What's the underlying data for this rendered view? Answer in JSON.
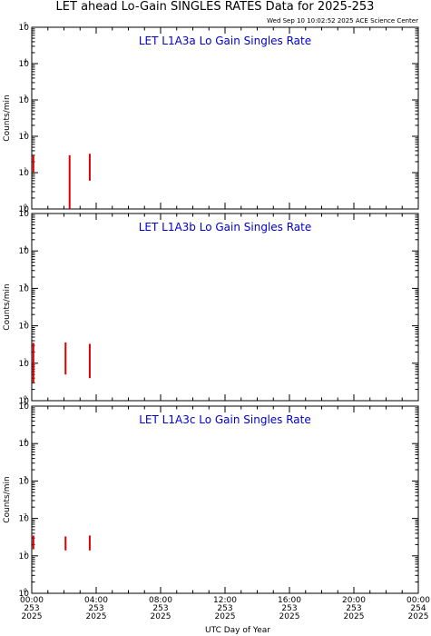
{
  "title": "LET ahead Lo-Gain SINGLES RATES Data for 2025-253",
  "timestamp": "Wed Sep 10 10:02:52 2025 ACE Science Center",
  "colors": {
    "data": "#dd0000",
    "panel_title": "#0000cc",
    "axes": "#000000"
  },
  "chart_data": [
    {
      "type": "line",
      "title": "LET L1A3a Lo Gain Singles Rate",
      "ylabel": "Counts/min",
      "yscale": "log",
      "ylim": [
        1,
        100000
      ],
      "xlim": [
        0,
        24
      ],
      "yticks": [
        "10",
        "10",
        "10",
        "10",
        "10",
        "10"
      ],
      "ytick_exponents": [
        "0",
        "1",
        "2",
        "3",
        "4",
        "5"
      ],
      "bursts": [
        {
          "x": 0.1,
          "ymin": 10,
          "ymax": 30
        },
        {
          "x": 2.35,
          "ymin": 1,
          "ymax": 30
        },
        {
          "x": 3.6,
          "ymin": 6,
          "ymax": 33
        }
      ]
    },
    {
      "type": "line",
      "title": "LET L1A3b Lo Gain Singles Rate",
      "ylabel": "Counts/min",
      "yscale": "log",
      "ylim": [
        1,
        100000
      ],
      "xlim": [
        0,
        24
      ],
      "yticks": [
        "10",
        "10",
        "10",
        "10",
        "10",
        "10"
      ],
      "ytick_exponents": [
        "0",
        "1",
        "2",
        "3",
        "4",
        "5"
      ],
      "bursts": [
        {
          "x": 0.1,
          "ymin": 3,
          "ymax": 35
        },
        {
          "x": 2.1,
          "ymin": 5,
          "ymax": 36
        },
        {
          "x": 3.6,
          "ymin": 4,
          "ymax": 33
        }
      ]
    },
    {
      "type": "line",
      "title": "LET L1A3c Lo Gain Singles Rate",
      "ylabel": "Counts/min",
      "yscale": "log",
      "ylim": [
        1,
        100000
      ],
      "xlim": [
        0,
        24
      ],
      "yticks": [
        "10",
        "10",
        "10",
        "10",
        "10",
        "10"
      ],
      "ytick_exponents": [
        "0",
        "1",
        "2",
        "3",
        "4",
        "5"
      ],
      "xlabel": "UTC Day of Year",
      "xticks": [
        {
          "time": "00:00",
          "day": "253",
          "year": "2025"
        },
        {
          "time": "04:00",
          "day": "253",
          "year": "2025"
        },
        {
          "time": "08:00",
          "day": "253",
          "year": "2025"
        },
        {
          "time": "12:00",
          "day": "253",
          "year": "2025"
        },
        {
          "time": "16:00",
          "day": "253",
          "year": "2025"
        },
        {
          "time": "20:00",
          "day": "253",
          "year": "2025"
        },
        {
          "time": "00:00",
          "day": "254",
          "year": "2025"
        }
      ],
      "bursts": [
        {
          "x": 0.1,
          "ymin": 15,
          "ymax": 35
        },
        {
          "x": 2.1,
          "ymin": 14,
          "ymax": 33
        },
        {
          "x": 3.6,
          "ymin": 14,
          "ymax": 35
        }
      ]
    }
  ]
}
